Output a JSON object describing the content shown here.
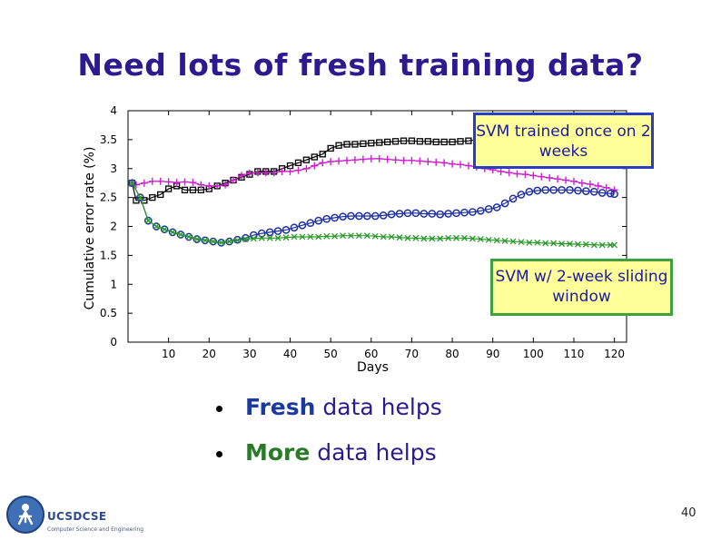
{
  "slide": {
    "title": "Need lots of fresh training data?",
    "page_number": "40"
  },
  "callouts": {
    "svm_once": "SVM trained once on 2 weeks",
    "svm_window": "SVM w/ 2-week sliding window"
  },
  "bullets": [
    {
      "keyword": "Fresh",
      "rest": " data helps",
      "keyword_color": "#1a3a9e"
    },
    {
      "keyword": "More",
      "rest": " data helps",
      "keyword_color": "#2a7a2a"
    }
  ],
  "logo": {
    "name": "UCSDCSE",
    "subtitle": "Computer Science and Engineering"
  },
  "colors": {
    "title": "#2e1a8e",
    "callout_bg": "#ffff99"
  },
  "chart_data": {
    "type": "line",
    "xlabel": "Days",
    "ylabel": "Cumulative error rate (%)",
    "xlim": [
      0,
      123
    ],
    "ylim": [
      0,
      4
    ],
    "xticks": [
      10,
      20,
      30,
      40,
      50,
      60,
      70,
      80,
      90,
      100,
      110,
      120
    ],
    "yticks": [
      0,
      0.5,
      1,
      1.5,
      2,
      2.5,
      3,
      3.5,
      4
    ],
    "grid": false,
    "series": [
      {
        "color": "#000000",
        "marker": "square",
        "x": [
          1,
          2,
          4,
          6,
          8,
          10,
          12,
          14,
          16,
          18,
          20,
          22,
          24,
          26,
          28,
          30,
          32,
          34,
          36,
          38,
          40,
          42,
          44,
          46,
          48,
          50,
          52,
          54,
          56,
          58,
          60,
          62,
          64,
          66,
          68,
          70,
          72,
          74,
          76,
          78,
          80,
          82,
          84,
          86,
          88,
          90,
          92,
          94,
          96,
          98,
          100,
          102,
          104,
          106,
          108,
          110,
          112,
          114,
          116,
          118,
          120
        ],
        "y": [
          2.75,
          2.45,
          2.45,
          2.5,
          2.55,
          2.65,
          2.7,
          2.63,
          2.63,
          2.63,
          2.65,
          2.7,
          2.75,
          2.8,
          2.85,
          2.9,
          2.95,
          2.95,
          2.95,
          3.0,
          3.05,
          3.1,
          3.15,
          3.2,
          3.25,
          3.35,
          3.4,
          3.42,
          3.42,
          3.43,
          3.44,
          3.45,
          3.46,
          3.47,
          3.48,
          3.48,
          3.47,
          3.47,
          3.46,
          3.46,
          3.46,
          3.47,
          3.48,
          3.5,
          3.52,
          3.54,
          3.56,
          3.57,
          3.58,
          3.58,
          3.6,
          3.62,
          3.63,
          3.64,
          3.65,
          3.66,
          3.67,
          3.68,
          3.69,
          3.7,
          3.72
        ]
      },
      {
        "color": "#cc22cc",
        "marker": "plus",
        "x": [
          1,
          2,
          4,
          6,
          8,
          10,
          12,
          14,
          16,
          18,
          20,
          22,
          24,
          26,
          28,
          30,
          32,
          34,
          36,
          38,
          40,
          42,
          44,
          46,
          48,
          50,
          52,
          54,
          56,
          58,
          60,
          62,
          64,
          66,
          68,
          70,
          72,
          74,
          76,
          78,
          80,
          82,
          84,
          86,
          88,
          90,
          92,
          94,
          96,
          98,
          100,
          102,
          104,
          106,
          108,
          110,
          112,
          114,
          116,
          118,
          120
        ],
        "y": [
          2.75,
          2.72,
          2.75,
          2.78,
          2.78,
          2.77,
          2.76,
          2.77,
          2.76,
          2.72,
          2.7,
          2.7,
          2.72,
          2.8,
          2.88,
          2.92,
          2.93,
          2.93,
          2.93,
          2.95,
          2.95,
          2.97,
          3.0,
          3.05,
          3.1,
          3.12,
          3.13,
          3.14,
          3.15,
          3.16,
          3.17,
          3.17,
          3.16,
          3.15,
          3.14,
          3.14,
          3.13,
          3.12,
          3.11,
          3.1,
          3.08,
          3.07,
          3.05,
          3.03,
          3.0,
          2.98,
          2.95,
          2.93,
          2.91,
          2.9,
          2.88,
          2.86,
          2.84,
          2.82,
          2.8,
          2.78,
          2.75,
          2.73,
          2.7,
          2.67,
          2.63
        ]
      },
      {
        "color": "#1e2fa0",
        "marker": "circle",
        "x": [
          1,
          3,
          5,
          7,
          9,
          11,
          13,
          15,
          17,
          19,
          21,
          23,
          25,
          27,
          29,
          31,
          33,
          35,
          37,
          39,
          41,
          43,
          45,
          47,
          49,
          51,
          53,
          55,
          57,
          59,
          61,
          63,
          65,
          67,
          69,
          71,
          73,
          75,
          77,
          79,
          81,
          83,
          85,
          87,
          89,
          91,
          93,
          95,
          97,
          99,
          101,
          103,
          105,
          107,
          109,
          111,
          113,
          115,
          117,
          119,
          120
        ],
        "y": [
          2.75,
          2.5,
          2.1,
          2.0,
          1.95,
          1.9,
          1.86,
          1.82,
          1.78,
          1.76,
          1.74,
          1.72,
          1.74,
          1.77,
          1.8,
          1.85,
          1.88,
          1.9,
          1.92,
          1.94,
          1.98,
          2.02,
          2.06,
          2.1,
          2.13,
          2.15,
          2.17,
          2.18,
          2.18,
          2.18,
          2.18,
          2.19,
          2.21,
          2.22,
          2.23,
          2.23,
          2.22,
          2.22,
          2.21,
          2.22,
          2.23,
          2.24,
          2.25,
          2.27,
          2.3,
          2.33,
          2.4,
          2.48,
          2.55,
          2.6,
          2.62,
          2.63,
          2.63,
          2.63,
          2.63,
          2.62,
          2.61,
          2.6,
          2.58,
          2.57,
          2.56
        ]
      },
      {
        "color": "#2a9a2a",
        "marker": "x",
        "x": [
          1,
          3,
          5,
          7,
          9,
          11,
          13,
          15,
          17,
          19,
          21,
          23,
          25,
          27,
          29,
          31,
          33,
          35,
          37,
          39,
          41,
          43,
          45,
          47,
          49,
          51,
          53,
          55,
          57,
          59,
          61,
          63,
          65,
          67,
          69,
          71,
          73,
          75,
          77,
          79,
          81,
          83,
          85,
          87,
          89,
          91,
          93,
          95,
          97,
          99,
          101,
          103,
          105,
          107,
          109,
          111,
          113,
          115,
          117,
          119,
          120
        ],
        "y": [
          2.75,
          2.5,
          2.1,
          2.0,
          1.95,
          1.9,
          1.86,
          1.82,
          1.78,
          1.76,
          1.74,
          1.72,
          1.74,
          1.76,
          1.78,
          1.79,
          1.8,
          1.8,
          1.8,
          1.81,
          1.82,
          1.82,
          1.82,
          1.82,
          1.83,
          1.83,
          1.84,
          1.84,
          1.84,
          1.84,
          1.83,
          1.82,
          1.82,
          1.81,
          1.8,
          1.8,
          1.79,
          1.79,
          1.79,
          1.8,
          1.8,
          1.8,
          1.79,
          1.78,
          1.77,
          1.76,
          1.75,
          1.74,
          1.73,
          1.72,
          1.72,
          1.71,
          1.71,
          1.7,
          1.7,
          1.69,
          1.69,
          1.68,
          1.68,
          1.68,
          1.68
        ]
      }
    ]
  }
}
